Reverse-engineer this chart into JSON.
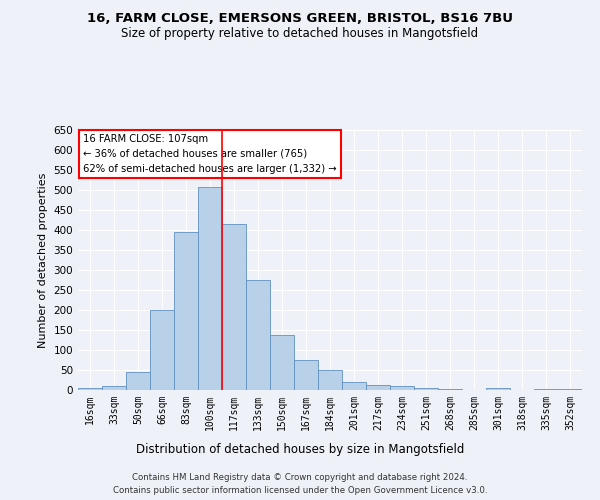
{
  "title1": "16, FARM CLOSE, EMERSONS GREEN, BRISTOL, BS16 7BU",
  "title2": "Size of property relative to detached houses in Mangotsfield",
  "xlabel": "Distribution of detached houses by size in Mangotsfield",
  "ylabel": "Number of detached properties",
  "annotation_title": "16 FARM CLOSE: 107sqm",
  "annotation_line1": "← 36% of detached houses are smaller (765)",
  "annotation_line2": "62% of semi-detached houses are larger (1,332) →",
  "footer1": "Contains HM Land Registry data © Crown copyright and database right 2024.",
  "footer2": "Contains public sector information licensed under the Open Government Licence v3.0.",
  "categories": [
    "16sqm",
    "33sqm",
    "50sqm",
    "66sqm",
    "83sqm",
    "100sqm",
    "117sqm",
    "133sqm",
    "150sqm",
    "167sqm",
    "184sqm",
    "201sqm",
    "217sqm",
    "234sqm",
    "251sqm",
    "268sqm",
    "285sqm",
    "301sqm",
    "318sqm",
    "335sqm",
    "352sqm"
  ],
  "bar_values": [
    5,
    10,
    45,
    200,
    395,
    507,
    415,
    275,
    138,
    75,
    50,
    20,
    13,
    9,
    6,
    3,
    0,
    6,
    0,
    3,
    2
  ],
  "bar_color": "#b8d0e8",
  "bar_edge_color": "#6090c0",
  "vline_x": 5.5,
  "vline_color": "red",
  "ylim": [
    0,
    650
  ],
  "yticks": [
    0,
    50,
    100,
    150,
    200,
    250,
    300,
    350,
    400,
    450,
    500,
    550,
    600,
    650
  ],
  "bg_color": "#eef2f8",
  "grid_color": "#ffffff"
}
